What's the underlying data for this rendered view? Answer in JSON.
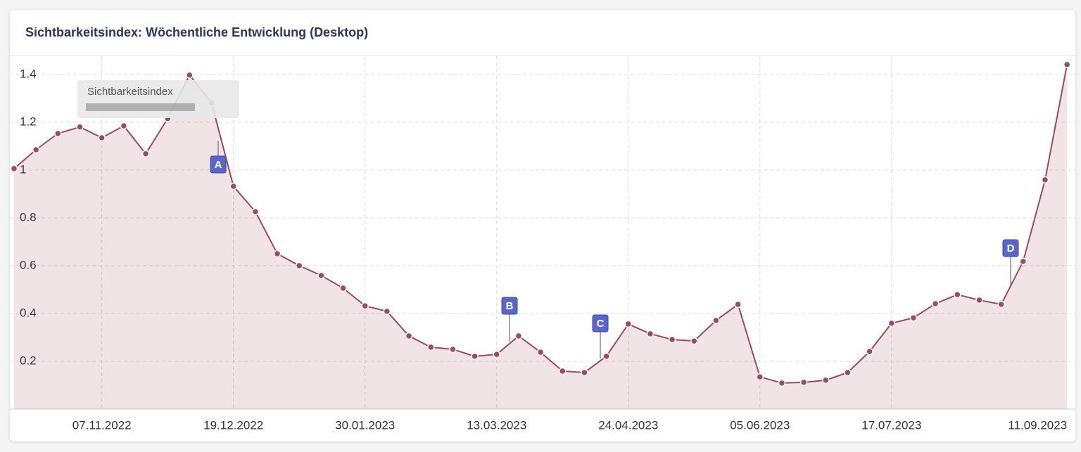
{
  "chart_data": {
    "type": "area",
    "title": "Sichtbarkeitsindex: Wöchentliche Entwicklung (Desktop)",
    "categories": [
      null,
      null,
      null,
      null,
      "07.11.2022",
      null,
      null,
      null,
      null,
      null,
      "19.12.2022",
      null,
      null,
      null,
      null,
      null,
      "30.01.2023",
      null,
      null,
      null,
      null,
      null,
      "13.03.2023",
      null,
      null,
      null,
      null,
      null,
      "24.04.2023",
      null,
      null,
      null,
      null,
      null,
      "05.06.2023",
      null,
      null,
      null,
      null,
      null,
      "17.07.2023",
      null,
      null,
      null,
      null,
      null,
      null,
      null,
      "11.09.2023"
    ],
    "series": [
      {
        "name": "Sichtbarkeitsindex",
        "color": "#9b4b5b",
        "values": [
          1.006,
          1.085,
          1.153,
          1.18,
          1.135,
          1.185,
          1.068,
          1.215,
          1.397,
          1.282,
          0.932,
          0.826,
          0.65,
          0.6,
          0.559,
          0.506,
          0.432,
          0.409,
          0.306,
          0.259,
          0.25,
          0.221,
          0.229,
          0.306,
          0.238,
          0.159,
          0.153,
          0.221,
          0.356,
          0.315,
          0.291,
          0.285,
          0.371,
          0.438,
          0.135,
          0.109,
          0.112,
          0.121,
          0.153,
          0.241,
          0.359,
          0.382,
          0.441,
          0.479,
          0.456,
          0.438,
          0.618,
          0.959,
          1.441
        ]
      }
    ],
    "ylim": [
      0,
      1.476
    ],
    "yticks": [
      0.2,
      0.4,
      0.6,
      0.8,
      1,
      1.2,
      1.4
    ],
    "grid": true,
    "annotations": [
      "A",
      "B",
      "C",
      "D"
    ]
  }
}
